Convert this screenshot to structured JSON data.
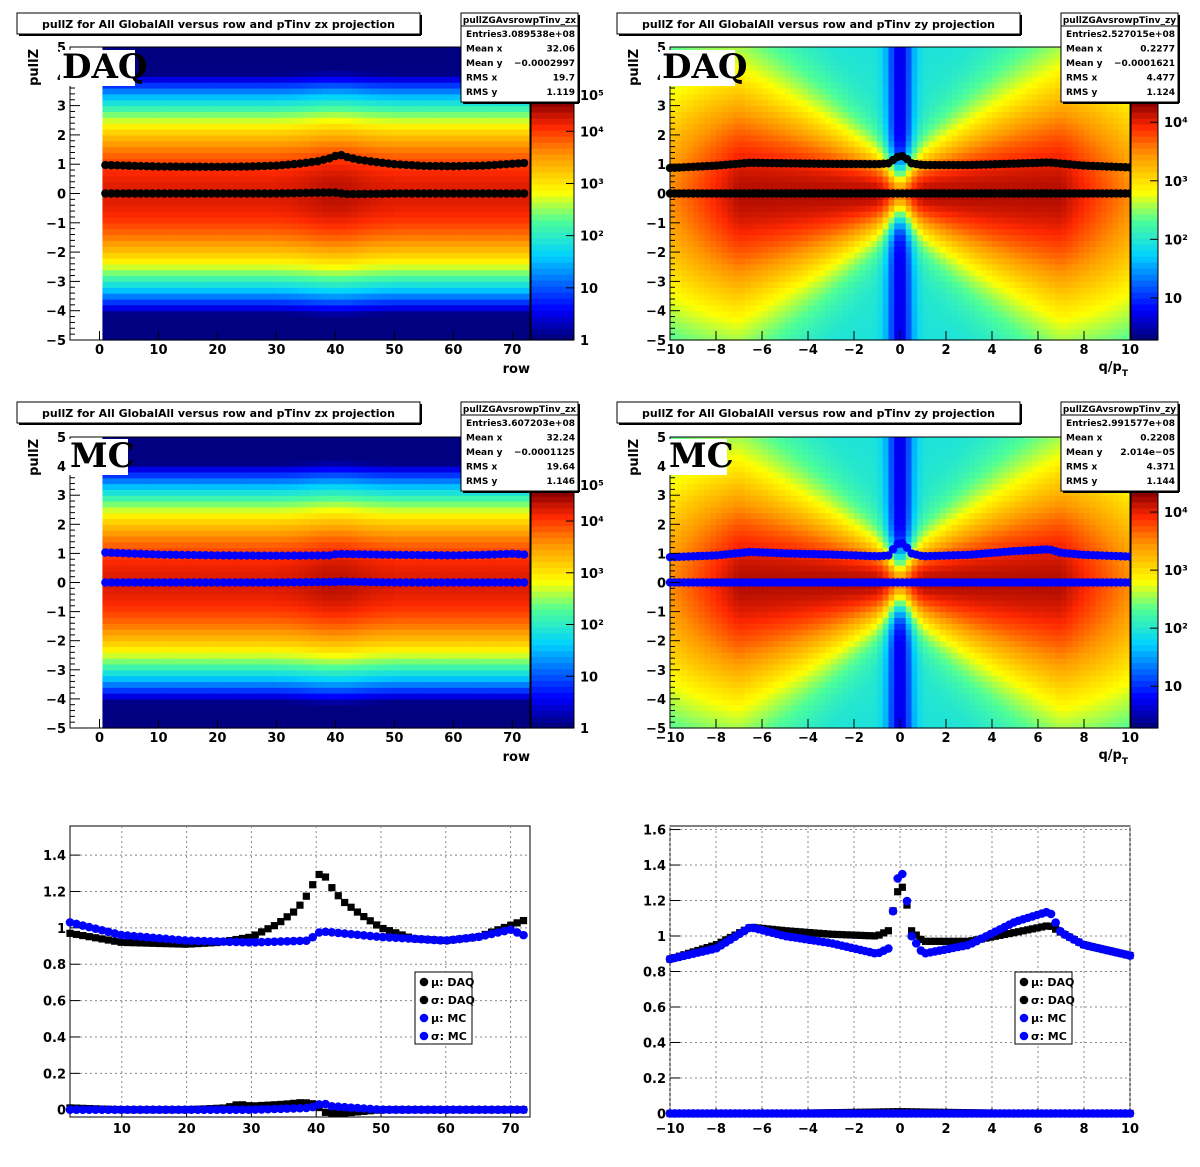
{
  "chart_data": [
    {
      "type": "heatmap",
      "title": "pullZ for All GlobalAll versus row and pTinv zx projection",
      "tag": "DAQ",
      "xlabel": "row",
      "ylabel": "pullZ",
      "xlim": [
        -5,
        73
      ],
      "ylim": [
        -5,
        5
      ],
      "x_ticks": [
        "0",
        "10",
        "20",
        "30",
        "40",
        "50",
        "60",
        "70"
      ],
      "y_ticks": [
        "−5",
        "−4",
        "−3",
        "−2",
        "−1",
        "0",
        "1",
        "2",
        "3",
        "4",
        "5"
      ],
      "z_scale": "log",
      "z_ticks": [
        "1",
        "10",
        "10²",
        "10³",
        "10⁴",
        "10⁵"
      ],
      "stats": {
        "name": "pullZGAvsrowpTinv_zx",
        "rows": [
          {
            "label": "Entries",
            "value": "3.089538e+08"
          },
          {
            "label": "Mean x",
            "value": "32.06"
          },
          {
            "label": "Mean y",
            "value": "−0.0002997"
          },
          {
            "label": "RMS x",
            "value": "19.7"
          },
          {
            "label": "RMS y",
            "value": "1.119"
          }
        ]
      },
      "overlay_color": "#000000",
      "mu": {
        "x": [
          1,
          10,
          20,
          30,
          35,
          38,
          40,
          41,
          42,
          44,
          50,
          60,
          72
        ],
        "y": [
          0,
          0,
          0,
          0,
          0.02,
          0.03,
          0.03,
          0,
          -0.02,
          -0.02,
          0,
          0,
          0
        ]
      },
      "sigma": {
        "x": [
          1,
          10,
          20,
          25,
          30,
          34,
          37,
          39,
          40,
          41,
          42,
          44,
          47,
          50,
          55,
          60,
          65,
          72
        ],
        "y": [
          0.97,
          0.92,
          0.91,
          0.92,
          0.95,
          1.02,
          1.1,
          1.2,
          1.28,
          1.31,
          1.24,
          1.15,
          1.07,
          1.0,
          0.94,
          0.93,
          0.95,
          1.04
        ]
      }
    },
    {
      "type": "heatmap",
      "title": "pullZ for All GlobalAll versus row and pTinv zy projection",
      "tag": "DAQ",
      "xlabel": "q/p_T",
      "ylabel": "pullZ",
      "xlim": [
        -10,
        10
      ],
      "ylim": [
        -5,
        5
      ],
      "x_ticks": [
        "−10",
        "−8",
        "−6",
        "−4",
        "−2",
        "0",
        "2",
        "4",
        "6",
        "8",
        "10"
      ],
      "y_ticks": [
        "−5",
        "−4",
        "−3",
        "−2",
        "−1",
        "0",
        "1",
        "2",
        "3",
        "4",
        "5"
      ],
      "z_scale": "log",
      "z_ticks": [
        "10",
        "10²",
        "10³",
        "10⁴"
      ],
      "stats": {
        "name": "pullZGAvsrowpTinv_zy",
        "rows": [
          {
            "label": "Entries",
            "value": "2.527015e+08"
          },
          {
            "label": "Mean x",
            "value": "0.2277"
          },
          {
            "label": "Mean y",
            "value": "−0.0001621"
          },
          {
            "label": "RMS x",
            "value": "4.477"
          },
          {
            "label": "RMS y",
            "value": "1.124"
          }
        ]
      },
      "overlay_color": "#000000",
      "mu": {
        "x": [
          -10,
          -5,
          0,
          5,
          10
        ],
        "y": [
          0,
          0,
          0,
          0,
          0
        ]
      },
      "sigma": {
        "x": [
          -10,
          -8,
          -6.5,
          -5,
          -3,
          -1,
          -0.5,
          -0.2,
          0,
          0.2,
          0.5,
          1,
          3,
          5,
          6.5,
          7,
          8,
          10
        ],
        "y": [
          0.87,
          0.95,
          1.05,
          1.03,
          1.01,
          1.0,
          1.03,
          1.2,
          1.3,
          1.25,
          1.03,
          0.97,
          0.97,
          1.02,
          1.06,
          1.02,
          0.95,
          0.89
        ]
      }
    },
    {
      "type": "heatmap",
      "title": "pullZ for All GlobalAll versus row and pTinv zx projection",
      "tag": "MC",
      "xlabel": "row",
      "ylabel": "pullZ",
      "xlim": [
        -5,
        73
      ],
      "ylim": [
        -5,
        5
      ],
      "x_ticks": [
        "0",
        "10",
        "20",
        "30",
        "40",
        "50",
        "60",
        "70"
      ],
      "y_ticks": [
        "−5",
        "−4",
        "−3",
        "−2",
        "−1",
        "0",
        "1",
        "2",
        "3",
        "4",
        "5"
      ],
      "z_scale": "log",
      "z_ticks": [
        "1",
        "10",
        "10²",
        "10³",
        "10⁴",
        "10⁵"
      ],
      "stats": {
        "name": "pullZGAvsrowpTinv_zx",
        "rows": [
          {
            "label": "Entries",
            "value": "3.607203e+08"
          },
          {
            "label": "Mean x",
            "value": "32.24"
          },
          {
            "label": "Mean y",
            "value": "−0.0001125"
          },
          {
            "label": "RMS x",
            "value": "19.64"
          },
          {
            "label": "RMS y",
            "value": "1.146"
          }
        ]
      },
      "overlay_color": "#0000ff",
      "mu": {
        "x": [
          1,
          10,
          20,
          30,
          40,
          41,
          50,
          60,
          72
        ],
        "y": [
          0,
          0,
          0,
          0,
          0.02,
          0.03,
          0,
          0,
          0
        ]
      },
      "sigma": {
        "x": [
          1,
          10,
          20,
          30,
          39,
          40,
          41,
          50,
          60,
          65,
          70,
          72
        ],
        "y": [
          1.03,
          0.96,
          0.93,
          0.92,
          0.93,
          0.97,
          0.98,
          0.95,
          0.93,
          0.95,
          0.99,
          0.96
        ]
      }
    },
    {
      "type": "heatmap",
      "title": "pullZ for All GlobalAll versus row and pTinv zy projection",
      "tag": "MC",
      "xlabel": "q/p_T",
      "ylabel": "pullZ",
      "xlim": [
        -10,
        10
      ],
      "ylim": [
        -5,
        5
      ],
      "x_ticks": [
        "−10",
        "−8",
        "−6",
        "−4",
        "−2",
        "0",
        "2",
        "4",
        "6",
        "8",
        "10"
      ],
      "y_ticks": [
        "−5",
        "−4",
        "−3",
        "−2",
        "−1",
        "0",
        "1",
        "2",
        "3",
        "4",
        "5"
      ],
      "z_scale": "log",
      "z_ticks": [
        "10",
        "10²",
        "10³",
        "10⁴"
      ],
      "stats": {
        "name": "pullZGAvsrowpTinv_zy",
        "rows": [
          {
            "label": "Entries",
            "value": "2.991577e+08"
          },
          {
            "label": "Mean x",
            "value": "0.2208"
          },
          {
            "label": "Mean y",
            "value": "2.014e−05"
          },
          {
            "label": "RMS x",
            "value": "4.371"
          },
          {
            "label": "RMS y",
            "value": "1.144"
          }
        ]
      },
      "overlay_color": "#0000ff",
      "mu": {
        "x": [
          -10,
          -5,
          0,
          5,
          10
        ],
        "y": [
          0,
          0,
          0,
          0,
          0
        ]
      },
      "sigma": {
        "x": [
          -10,
          -8,
          -6.5,
          -5,
          -3,
          -1,
          -0.5,
          -0.2,
          0,
          0.2,
          0.5,
          1,
          3,
          5,
          6.5,
          7,
          8,
          10
        ],
        "y": [
          0.87,
          0.93,
          1.05,
          1.0,
          0.96,
          0.9,
          0.93,
          1.25,
          1.4,
          1.3,
          1.0,
          0.9,
          0.95,
          1.08,
          1.14,
          1.02,
          0.95,
          0.89
        ]
      }
    },
    {
      "type": "scatter",
      "title": "",
      "xlabel": "",
      "ylabel": "",
      "xlim": [
        2,
        73
      ],
      "ylim": [
        -0.04,
        1.56
      ],
      "x_ticks": [
        "10",
        "20",
        "30",
        "40",
        "50",
        "60",
        "70"
      ],
      "y_ticks": [
        "0",
        "0.2",
        "0.4",
        "0.6",
        "0.8",
        "1",
        "1.2",
        "1.4"
      ],
      "grid": true,
      "legend": {
        "placement": "bottom-right",
        "entries": [
          "μ: DAQ",
          "σ: DAQ",
          "μ: MC",
          "σ: MC"
        ]
      },
      "series": [
        {
          "name": "μ: DAQ",
          "color": "#000000",
          "x": [
            2,
            10,
            20,
            26,
            28,
            30,
            35,
            38,
            40,
            41,
            42,
            44,
            50,
            60,
            72
          ],
          "y": [
            0.01,
            0,
            0,
            0.01,
            0.03,
            0.02,
            0.03,
            0.04,
            0.03,
            -0.01,
            -0.02,
            -0.02,
            0,
            0,
            0
          ]
        },
        {
          "name": "σ: DAQ",
          "color": "#000000",
          "x": [
            2,
            10,
            20,
            25,
            30,
            34,
            37,
            39,
            40,
            41,
            42,
            44,
            47,
            50,
            55,
            60,
            65,
            72
          ],
          "y": [
            0.97,
            0.92,
            0.91,
            0.92,
            0.95,
            1.02,
            1.1,
            1.2,
            1.28,
            1.31,
            1.24,
            1.15,
            1.07,
            1.0,
            0.94,
            0.93,
            0.95,
            1.04
          ]
        },
        {
          "name": "μ: MC",
          "color": "#0000ff",
          "x": [
            2,
            10,
            20,
            30,
            39,
            40,
            41,
            42,
            50,
            60,
            72
          ],
          "y": [
            0,
            0,
            0,
            0,
            0.01,
            0.02,
            0.04,
            0.02,
            0,
            0,
            0
          ]
        },
        {
          "name": "σ: MC",
          "color": "#0000ff",
          "x": [
            2,
            10,
            20,
            30,
            39,
            40,
            41,
            50,
            60,
            65,
            70,
            72
          ],
          "y": [
            1.03,
            0.96,
            0.93,
            0.92,
            0.93,
            0.97,
            0.98,
            0.95,
            0.93,
            0.95,
            0.99,
            0.96
          ]
        }
      ]
    },
    {
      "type": "scatter",
      "title": "",
      "xlabel": "",
      "ylabel": "",
      "xlim": [
        -10,
        10
      ],
      "ylim": [
        -0.02,
        1.62
      ],
      "x_ticks": [
        "−10",
        "−8",
        "−6",
        "−4",
        "−2",
        "0",
        "2",
        "4",
        "6",
        "8",
        "10"
      ],
      "y_ticks": [
        "0",
        "0.2",
        "0.4",
        "0.6",
        "0.8",
        "1",
        "1.2",
        "1.4",
        "1.6"
      ],
      "grid": true,
      "legend": {
        "placement": "bottom-right",
        "entries": [
          "μ: DAQ",
          "σ: DAQ",
          "μ: MC",
          "σ: MC"
        ]
      },
      "series": [
        {
          "name": "μ: DAQ",
          "color": "#000000",
          "x": [
            -10,
            -5,
            0,
            5,
            10
          ],
          "y": [
            0,
            0,
            0.01,
            0,
            0
          ]
        },
        {
          "name": "σ: DAQ",
          "color": "#000000",
          "x": [
            -10,
            -8,
            -6.5,
            -5,
            -3,
            -1,
            -0.5,
            -0.2,
            0,
            0.2,
            0.5,
            1,
            3,
            5,
            6.5,
            7,
            8,
            10
          ],
          "y": [
            0.87,
            0.95,
            1.05,
            1.03,
            1.01,
            1.0,
            1.03,
            1.2,
            1.3,
            1.25,
            1.03,
            0.97,
            0.97,
            1.02,
            1.06,
            1.02,
            0.95,
            0.89
          ]
        },
        {
          "name": "μ: MC",
          "color": "#0000ff",
          "x": [
            -10,
            -5,
            0,
            5,
            10
          ],
          "y": [
            0,
            0,
            0,
            0,
            0
          ]
        },
        {
          "name": "σ: MC",
          "color": "#0000ff",
          "x": [
            -10,
            -8,
            -6.5,
            -5,
            -3,
            -1,
            -0.5,
            -0.2,
            0,
            0.2,
            0.5,
            1,
            3,
            5,
            6.5,
            7,
            8,
            10
          ],
          "y": [
            0.87,
            0.93,
            1.05,
            1.0,
            0.96,
            0.9,
            0.93,
            1.25,
            1.4,
            1.3,
            1.0,
            0.9,
            0.95,
            1.08,
            1.14,
            1.02,
            0.95,
            0.89
          ]
        }
      ]
    }
  ]
}
